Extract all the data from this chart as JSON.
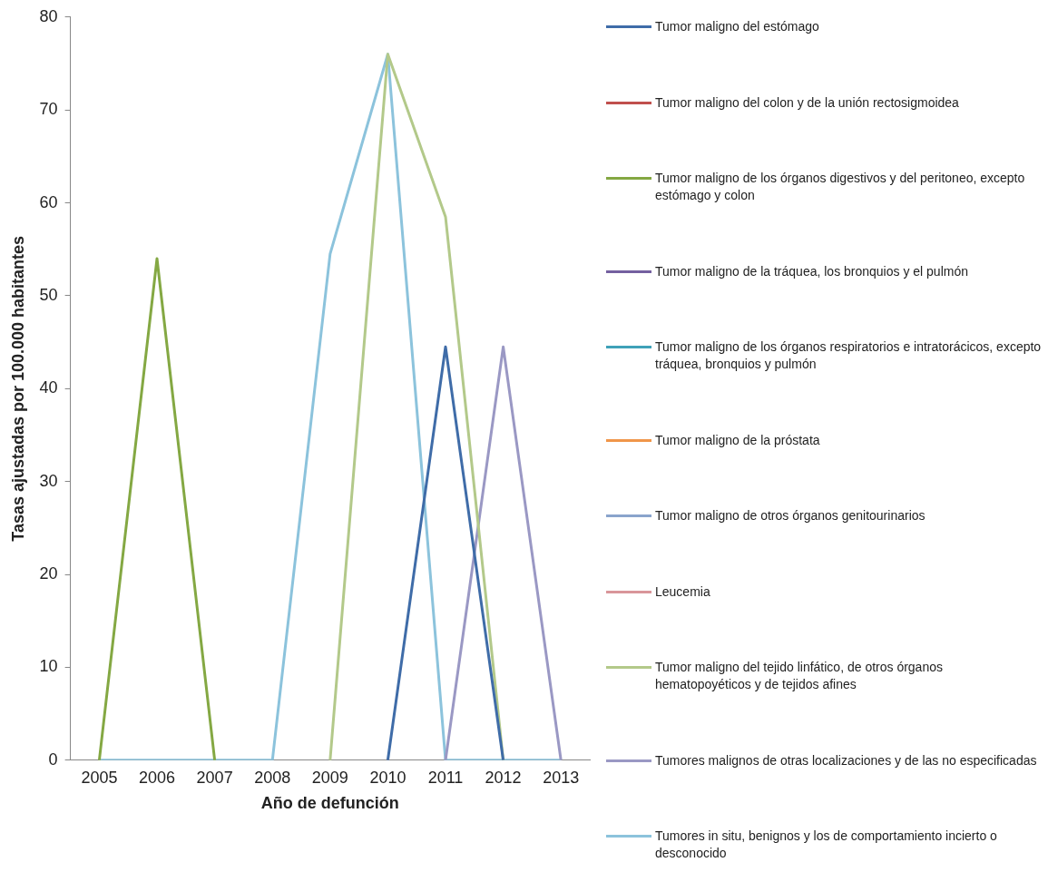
{
  "chart_data": {
    "type": "line",
    "xlabel": "Año de defunción",
    "ylabel": "Tasas ajustadas por 100.000 habitantes",
    "categories": [
      "2005",
      "2006",
      "2007",
      "2008",
      "2009",
      "2010",
      "2011",
      "2012",
      "2013"
    ],
    "ylim": [
      0,
      80
    ],
    "yticks": [
      0,
      10,
      20,
      30,
      40,
      50,
      60,
      70,
      80
    ],
    "grid": false,
    "legend": "right",
    "marker": "none",
    "line_style": "solid",
    "series": [
      {
        "name": "Tumor maligno del estómago",
        "color": "#3f6ca8",
        "values": [
          null,
          null,
          null,
          null,
          null,
          0,
          44.5,
          0,
          null
        ]
      },
      {
        "name": "Tumor maligno del colon y de la unión rectosigmoidea",
        "color": "#c0504d",
        "values": [
          null,
          null,
          null,
          null,
          null,
          null,
          null,
          null,
          null
        ]
      },
      {
        "name": "Tumor maligno de los órganos digestivos y del peritoneo, excepto estómago y colon",
        "color": "#84a843",
        "values": [
          0,
          54,
          0,
          null,
          null,
          null,
          null,
          null,
          null
        ]
      },
      {
        "name": "Tumor maligno de la tráquea, los bronquios y el pulmón",
        "color": "#7460a0",
        "values": [
          null,
          null,
          null,
          null,
          null,
          null,
          null,
          null,
          null
        ]
      },
      {
        "name": "Tumor maligno de los órganos respiratorios e intratorácicos, excepto tráquea, bronquios y pulmón",
        "color": "#3fa1b8",
        "values": [
          null,
          null,
          null,
          null,
          null,
          null,
          null,
          null,
          null
        ]
      },
      {
        "name": "Tumor maligno de la próstata",
        "color": "#f0964a",
        "values": [
          null,
          null,
          null,
          null,
          null,
          null,
          null,
          null,
          null
        ]
      },
      {
        "name": "Tumor maligno de otros órganos genitourinarios",
        "color": "#8aa4cc",
        "values": [
          null,
          null,
          null,
          null,
          null,
          null,
          null,
          null,
          null
        ]
      },
      {
        "name": "Leucemia",
        "color": "#d9969a",
        "values": [
          null,
          null,
          null,
          null,
          null,
          null,
          null,
          null,
          null
        ]
      },
      {
        "name": "Tumor maligno del tejido linfático, de otros órganos hematopoyéticos y de tejidos afines",
        "color": "#b3c98a",
        "values": [
          null,
          null,
          null,
          null,
          0,
          76,
          58.5,
          0,
          null
        ]
      },
      {
        "name": "Tumores malignos de otras localizaciones y de las no especificadas",
        "color": "#9a98c4",
        "values": [
          null,
          null,
          null,
          null,
          null,
          null,
          0,
          44.5,
          0
        ]
      },
      {
        "name": "Tumores in situ, benignos y los de comportamiento incierto o desconocido",
        "color": "#8cc3dc",
        "values": [
          0,
          0,
          0,
          0,
          54.5,
          76,
          0,
          0,
          0
        ]
      }
    ]
  }
}
